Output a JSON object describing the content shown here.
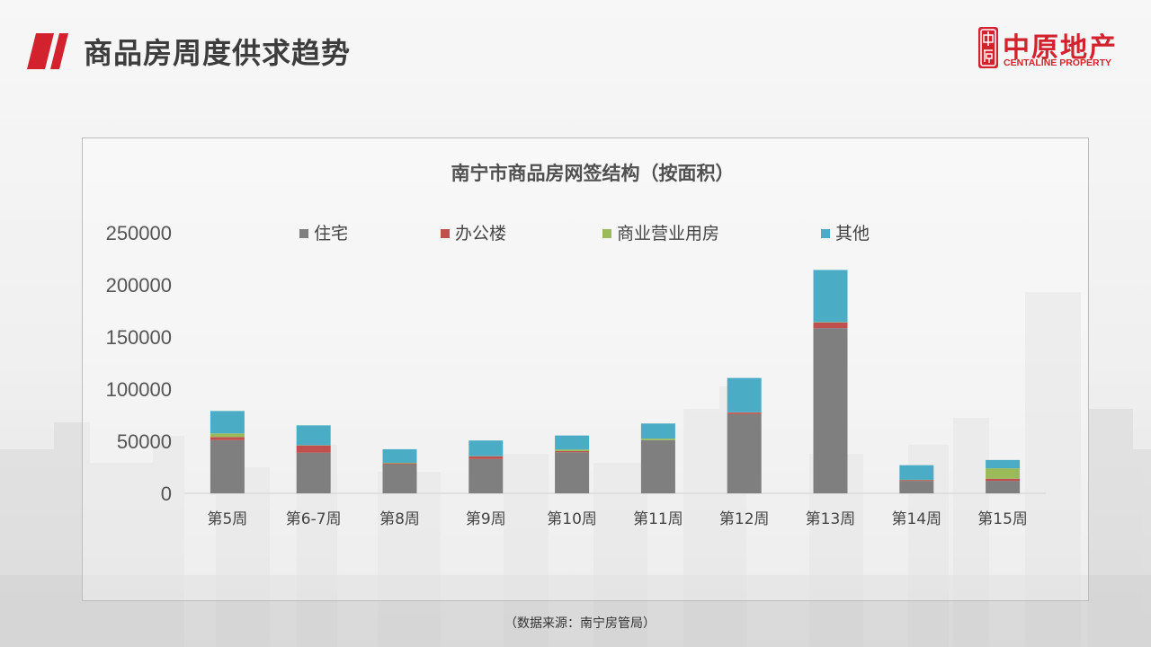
{
  "page": {
    "title": "商品房周度供求趋势",
    "source_note": "（数据来源：南宁房管局）"
  },
  "logo": {
    "name_cn": "中原地产",
    "name_en": "CENTALINE PROPERTY",
    "seal_text": "中原"
  },
  "colors": {
    "accent": "#d2222d",
    "residential": "#7f7f7f",
    "office": "#c0504d",
    "commercial": "#9bbb59",
    "other": "#4bacc6"
  },
  "chart_data": {
    "type": "bar",
    "stacked": true,
    "title": "南宁市商品房网签结构（按面积）",
    "categories": [
      "第5周",
      "第6-7周",
      "第8周",
      "第9周",
      "第10周",
      "第11周",
      "第12周",
      "第13周",
      "第14周",
      "第15周"
    ],
    "ylim": [
      0,
      250000
    ],
    "yticks": [
      0,
      50000,
      100000,
      150000,
      200000,
      250000
    ],
    "grid": false,
    "legend_position": "top",
    "series": [
      {
        "name": "住宅",
        "color": "#7f7f7f",
        "values": [
          51000,
          39000,
          28000,
          33000,
          39500,
          51000,
          76000,
          158500,
          12000,
          12000
        ]
      },
      {
        "name": "办公楼",
        "color": "#c0504d",
        "values": [
          3000,
          7000,
          800,
          2500,
          1000,
          0,
          1500,
          5500,
          800,
          2000
        ]
      },
      {
        "name": "商业营业用房",
        "color": "#9bbb59",
        "values": [
          3500,
          200,
          500,
          200,
          1500,
          1500,
          200,
          300,
          200,
          10000
        ]
      },
      {
        "name": "其他",
        "color": "#4bacc6",
        "values": [
          21500,
          19000,
          13000,
          15000,
          13500,
          14500,
          33000,
          50000,
          14000,
          8000
        ]
      }
    ]
  }
}
